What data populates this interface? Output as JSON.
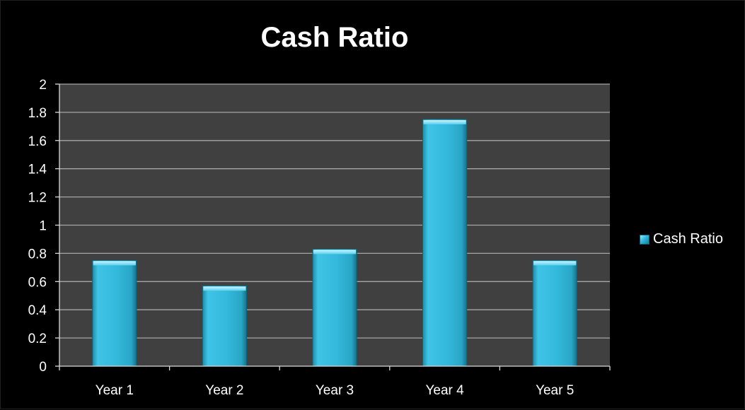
{
  "chart_data": {
    "type": "bar",
    "title": "Cash Ratio",
    "categories": [
      "Year 1",
      "Year 2",
      "Year 3",
      "Year 4",
      "Year 5"
    ],
    "series": [
      {
        "name": "Cash Ratio",
        "values": [
          0.75,
          0.57,
          0.83,
          1.75,
          0.75
        ]
      }
    ],
    "ylim": [
      0,
      2
    ],
    "yticks": [
      "0",
      "0.2",
      "0.4",
      "0.6",
      "0.8",
      "1",
      "1.2",
      "1.4",
      "1.6",
      "1.8",
      "2"
    ],
    "grid": true,
    "legend": "right",
    "colors": {
      "background": "#000000",
      "plot_area": "#404040",
      "bar": "#31b8dc",
      "bar_light": "#8fe3f8",
      "bar_dark": "#1a8aa6",
      "gridline": "#a6a6a6",
      "text": "#ffffff"
    }
  }
}
